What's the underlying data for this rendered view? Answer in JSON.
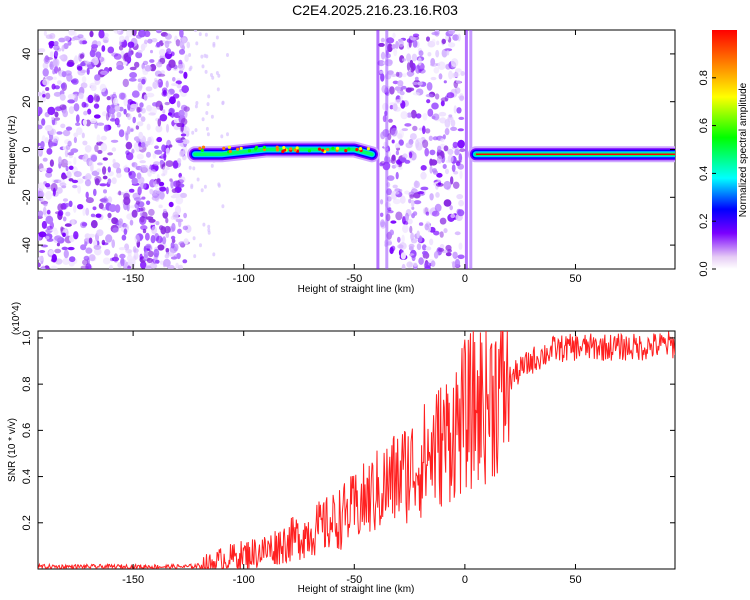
{
  "title": "C2E4.2025.216.23.16.R03",
  "chart_data": [
    {
      "type": "heatmap",
      "xlabel": "Height of straight line (km)",
      "ylabel": "Frequency (Hz)",
      "xlim": [
        -193,
        95
      ],
      "ylim": [
        -50,
        50
      ],
      "x_ticks": [
        -150,
        -100,
        -50,
        0,
        50
      ],
      "y_ticks": [
        -40,
        -20,
        0,
        20,
        40
      ],
      "colorbar": {
        "label": "Normalized spectral amplitude",
        "range": [
          0,
          1
        ],
        "ticks": [
          "0.0",
          "0.2",
          "0.4",
          "0.6",
          "0.8"
        ]
      },
      "ridge": [
        {
          "x": -122,
          "y": -2
        },
        {
          "x": -110,
          "y": -2
        },
        {
          "x": -100,
          "y": -1
        },
        {
          "x": -90,
          "y": 0
        },
        {
          "x": -80,
          "y": 0
        },
        {
          "x": -70,
          "y": 0
        },
        {
          "x": -60,
          "y": 0
        },
        {
          "x": -50,
          "y": 0
        },
        {
          "x": -42,
          "y": -2
        },
        {
          "x": 5,
          "y": -2
        },
        {
          "x": 20,
          "y": -2
        },
        {
          "x": 50,
          "y": -2
        },
        {
          "x": 95,
          "y": -2
        }
      ],
      "noise_regions": [
        [
          -193,
          -125
        ],
        [
          -38,
          -1
        ]
      ]
    },
    {
      "type": "line",
      "xlabel": "Height of straight line (km)",
      "ylabel": "SNR (10 * v/v)",
      "y_multiplier": "(x10^4)",
      "xlim": [
        -193,
        95
      ],
      "ylim": [
        0,
        1.03
      ],
      "x_ticks": [
        -150,
        -100,
        -50,
        0,
        50
      ],
      "y_ticks": [
        0.2,
        0.4,
        0.6,
        0.8,
        1.0
      ],
      "color": "#ff2020",
      "series": [
        {
          "x": [
            -193,
            -150,
            -125,
            -115,
            -110,
            -100,
            -90,
            -80,
            -70,
            -60,
            -50,
            -40,
            -30,
            -20,
            -10,
            0,
            10,
            20,
            30,
            40,
            50,
            60,
            70,
            80,
            90,
            95
          ],
          "values": [
            0.01,
            0.01,
            0.01,
            0.02,
            0.04,
            0.06,
            0.08,
            0.12,
            0.16,
            0.2,
            0.26,
            0.33,
            0.4,
            0.46,
            0.55,
            0.66,
            0.74,
            0.82,
            0.9,
            0.95,
            0.96,
            0.96,
            0.96,
            0.96,
            0.97,
            0.97
          ]
        }
      ]
    }
  ]
}
